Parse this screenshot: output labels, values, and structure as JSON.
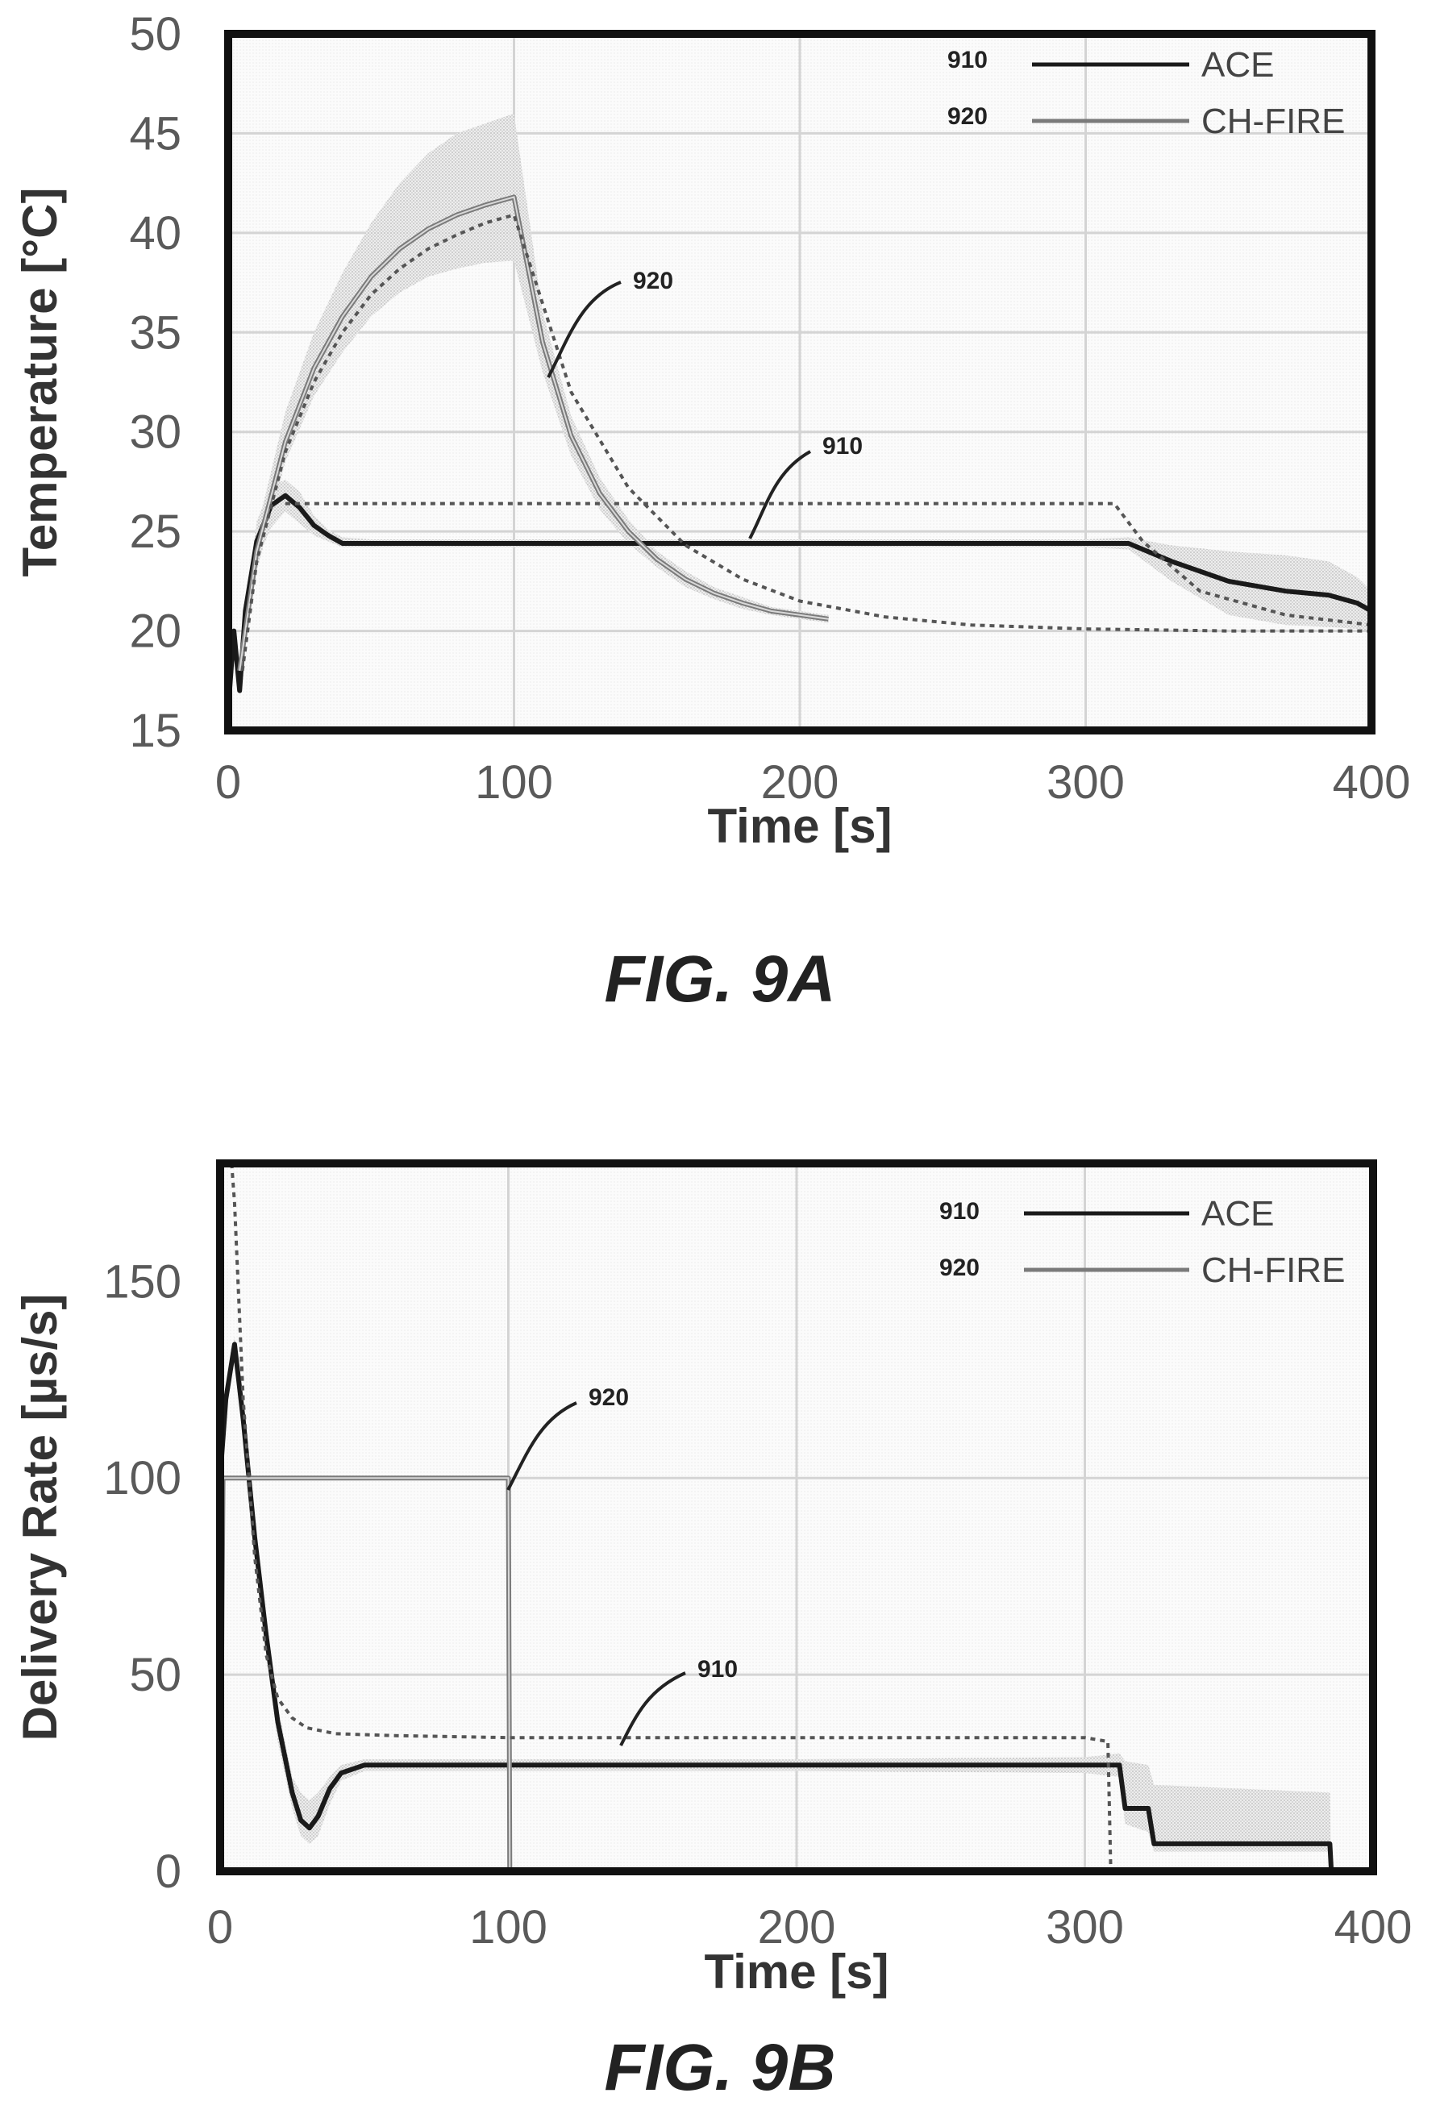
{
  "chart_data": [
    {
      "type": "line",
      "figure_label": "FIG. 9A",
      "xlabel": "Time [s]",
      "ylabel": "Temperature [°C]",
      "xlim": [
        0,
        400
      ],
      "ylim": [
        15,
        50
      ],
      "xticks": [
        "0",
        "100",
        "200",
        "300",
        "400"
      ],
      "yticks": [
        "15",
        "20",
        "25",
        "30",
        "35",
        "40",
        "45",
        "50"
      ],
      "grid": true,
      "legend_position": "top-right",
      "legend": [
        {
          "ref": "910",
          "label": "ACE"
        },
        {
          "ref": "920",
          "label": "CH-FIRE"
        }
      ],
      "callouts": [
        "920",
        "910"
      ],
      "series": [
        {
          "name": "ACE",
          "ref": "910",
          "color": "#1a1a1a",
          "x": [
            0,
            2,
            4,
            6,
            10,
            15,
            20,
            25,
            30,
            35,
            40,
            50,
            100,
            200,
            300,
            315,
            330,
            350,
            370,
            385,
            395,
            400
          ],
          "y": [
            16,
            20,
            17,
            21,
            24.5,
            26.3,
            26.8,
            26.2,
            25.3,
            24.8,
            24.4,
            24.4,
            24.4,
            24.4,
            24.4,
            24.4,
            23.5,
            22.5,
            22.0,
            21.8,
            21.4,
            21.0
          ],
          "band_upper": [
            16,
            20,
            17,
            21,
            25.5,
            27.3,
            27.6,
            27.0,
            25.8,
            25.1,
            24.7,
            24.6,
            24.6,
            24.6,
            24.6,
            24.7,
            24.3,
            24.0,
            23.8,
            23.5,
            22.7,
            22.0
          ],
          "band_lower": [
            16,
            20,
            17,
            21,
            23.5,
            25.2,
            26.0,
            25.4,
            24.8,
            24.5,
            24.2,
            24.2,
            24.2,
            24.2,
            24.2,
            24.1,
            22.5,
            20.8,
            20.3,
            20.2,
            20.1,
            20.0
          ]
        },
        {
          "name": "ACE (simulated)",
          "ref": "910",
          "color": "#555555",
          "dashed": true,
          "x": [
            20,
            40,
            100,
            200,
            300,
            310,
            320,
            340,
            370,
            400
          ],
          "y": [
            26.4,
            26.4,
            26.4,
            26.4,
            26.4,
            26.4,
            24.5,
            22.0,
            20.8,
            20.3
          ]
        },
        {
          "name": "CH-FIRE",
          "ref": "920",
          "color": "#7a7a7a",
          "x": [
            4,
            10,
            20,
            30,
            40,
            50,
            60,
            70,
            80,
            90,
            100,
            110,
            120,
            130,
            140,
            150,
            160,
            170,
            180,
            190,
            200,
            210
          ],
          "y": [
            18,
            24,
            29.5,
            33.2,
            35.8,
            37.8,
            39.2,
            40.2,
            40.9,
            41.4,
            41.8,
            34.5,
            29.8,
            26.9,
            25.0,
            23.6,
            22.6,
            21.9,
            21.4,
            21.0,
            20.8,
            20.6
          ],
          "band_upper": [
            18,
            25,
            31.0,
            35.0,
            38.0,
            40.5,
            42.5,
            44.0,
            45.0,
            45.5,
            46.0,
            36.0,
            30.8,
            27.7,
            25.6,
            24.0,
            23.0,
            22.2,
            21.7,
            21.2,
            21.0,
            20.8
          ],
          "band_lower": [
            18,
            23,
            28.5,
            31.8,
            34.0,
            35.8,
            37.0,
            37.8,
            38.2,
            38.5,
            38.6,
            33.0,
            28.8,
            26.1,
            24.4,
            23.2,
            22.2,
            21.6,
            21.1,
            20.8,
            20.6,
            20.4
          ]
        },
        {
          "name": "CH-FIRE (simulated)",
          "ref": "920",
          "color": "#555555",
          "dashed": true,
          "x": [
            5,
            10,
            20,
            30,
            40,
            50,
            60,
            70,
            80,
            90,
            100,
            120,
            140,
            160,
            180,
            200,
            230,
            260,
            300,
            350,
            400
          ],
          "y": [
            18,
            23.5,
            29.0,
            32.5,
            35.0,
            36.9,
            38.2,
            39.2,
            39.9,
            40.5,
            40.9,
            32.0,
            27.2,
            24.3,
            22.6,
            21.5,
            20.7,
            20.3,
            20.1,
            20.0,
            20.0
          ]
        }
      ]
    },
    {
      "type": "line",
      "figure_label": "FIG. 9B",
      "xlabel": "Time [s]",
      "ylabel": "Delivery Rate [µs/s]",
      "xlim": [
        0,
        400
      ],
      "ylim": [
        0,
        180
      ],
      "xticks": [
        "0",
        "100",
        "200",
        "300",
        "400"
      ],
      "yticks": [
        "0",
        "50",
        "100",
        "150"
      ],
      "grid": true,
      "legend_position": "top-right",
      "legend": [
        {
          "ref": "910",
          "label": "ACE"
        },
        {
          "ref": "920",
          "label": "CH-FIRE"
        }
      ],
      "callouts": [
        "920",
        "910"
      ],
      "series": [
        {
          "name": "ACE",
          "ref": "910",
          "color": "#1a1a1a",
          "x": [
            0,
            2,
            5,
            8,
            12,
            16,
            20,
            25,
            28,
            31,
            34,
            38,
            42,
            50,
            100,
            200,
            300,
            312,
            314,
            322,
            324,
            385,
            385.5
          ],
          "y": [
            100,
            120,
            134,
            115,
            85,
            60,
            38,
            20,
            13,
            11,
            14,
            21,
            25,
            27,
            27,
            27,
            27,
            27,
            16,
            16,
            7,
            7,
            0
          ],
          "band_upper": [
            100,
            120,
            136,
            118,
            90,
            65,
            42,
            24,
            20,
            18,
            20,
            24,
            27,
            28.5,
            28.5,
            28.5,
            29,
            30,
            28,
            27,
            22,
            20,
            0
          ],
          "band_lower": [
            100,
            120,
            130,
            110,
            80,
            55,
            33,
            16,
            9,
            7,
            9,
            17,
            23,
            25.5,
            25.5,
            25.5,
            25,
            24,
            12,
            10,
            5,
            5,
            0
          ]
        },
        {
          "name": "CH-FIRE",
          "ref": "920",
          "color": "#7a7a7a",
          "x": [
            0,
            1,
            100,
            100.5
          ],
          "y": [
            0,
            100,
            100,
            0
          ]
        },
        {
          "name": "ACE (simulated)",
          "ref": "910",
          "color": "#555555",
          "dashed": true,
          "x": [
            4,
            5,
            8,
            12,
            16,
            20,
            25,
            30,
            40,
            60,
            100,
            200,
            300,
            308,
            309
          ],
          "y": [
            180,
            170,
            120,
            80,
            55,
            44,
            39,
            36.5,
            35,
            34.5,
            34,
            34,
            34,
            33,
            0
          ]
        }
      ]
    }
  ]
}
